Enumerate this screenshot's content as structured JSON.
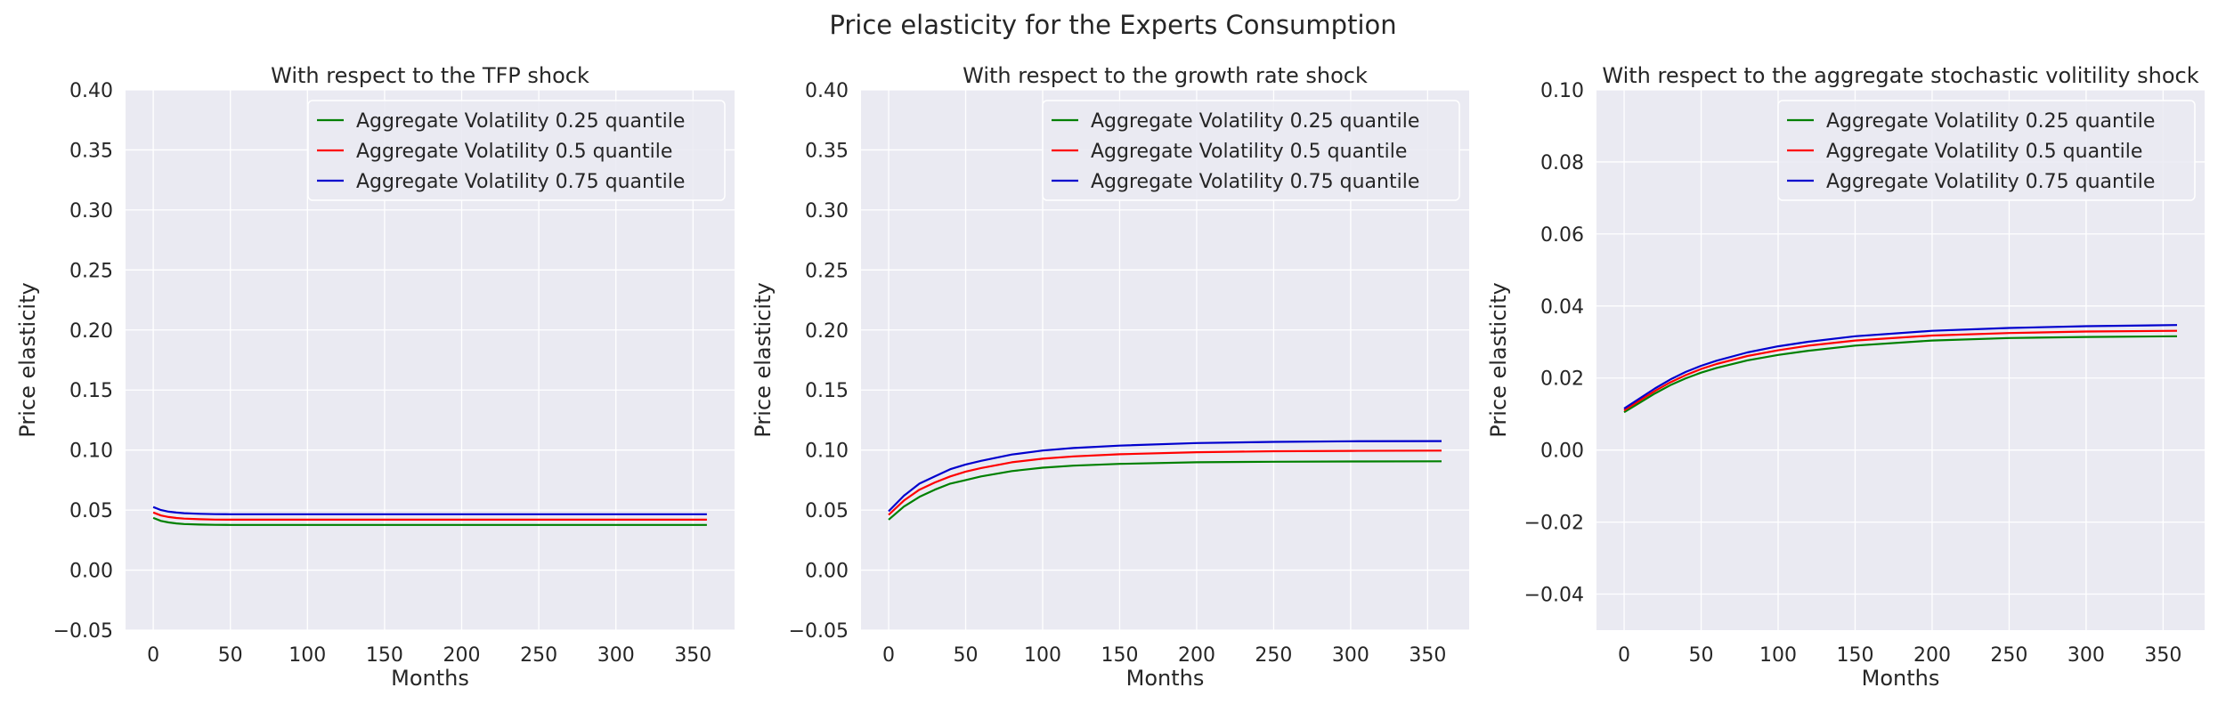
{
  "figure_title": "Price elasticity for the Experts Consumption",
  "chart_data": [
    {
      "type": "line",
      "title": "With respect to the TFP shock",
      "xlabel": "Months",
      "ylabel": "Price elasticity",
      "xlim": [
        -17.95,
        376.95
      ],
      "ylim": [
        -0.05,
        0.4
      ],
      "xticks": [
        0,
        50,
        100,
        150,
        200,
        250,
        300,
        350
      ],
      "yticks": [
        -0.05,
        0.0,
        0.05,
        0.1,
        0.15,
        0.2,
        0.25,
        0.3,
        0.35,
        0.4
      ],
      "ytick_decimals": 2,
      "grid": true,
      "legend": "top-right",
      "x": [
        0,
        5,
        10,
        15,
        20,
        30,
        40,
        50,
        60,
        80,
        100,
        150,
        200,
        250,
        300,
        359
      ],
      "series": [
        {
          "name": "Aggregate Volatility 0.25 quantile",
          "color": "#008000",
          "values": [
            0.0435,
            0.041,
            0.0397,
            0.0389,
            0.0384,
            0.0379,
            0.0377,
            0.0376,
            0.0376,
            0.0376,
            0.0376,
            0.0376,
            0.0376,
            0.0376,
            0.0376,
            0.0376
          ]
        },
        {
          "name": "Aggregate Volatility 0.5 quantile",
          "color": "#ff0000",
          "values": [
            0.048,
            0.0455,
            0.0442,
            0.0434,
            0.0429,
            0.0424,
            0.0421,
            0.042,
            0.042,
            0.042,
            0.042,
            0.042,
            0.042,
            0.042,
            0.042,
            0.042
          ]
        },
        {
          "name": "Aggregate Volatility 0.75 quantile",
          "color": "#0000cd",
          "values": [
            0.0525,
            0.05,
            0.0487,
            0.0479,
            0.0474,
            0.0469,
            0.0466,
            0.0465,
            0.0465,
            0.0465,
            0.0465,
            0.0465,
            0.0465,
            0.0465,
            0.0465,
            0.0465
          ]
        }
      ]
    },
    {
      "type": "line",
      "title": "With respect to the growth rate shock",
      "xlabel": "Months",
      "ylabel": "Price elasticity",
      "xlim": [
        -17.95,
        376.95
      ],
      "ylim": [
        -0.05,
        0.4
      ],
      "xticks": [
        0,
        50,
        100,
        150,
        200,
        250,
        300,
        350
      ],
      "yticks": [
        -0.05,
        0.0,
        0.05,
        0.1,
        0.15,
        0.2,
        0.25,
        0.3,
        0.35,
        0.4
      ],
      "ytick_decimals": 2,
      "grid": true,
      "legend": "top-right",
      "x": [
        0,
        10,
        20,
        30,
        40,
        50,
        60,
        80,
        100,
        120,
        150,
        200,
        250,
        300,
        359
      ],
      "series": [
        {
          "name": "Aggregate Volatility 0.25 quantile",
          "color": "#008000",
          "values": [
            0.042,
            0.053,
            0.061,
            0.067,
            0.072,
            0.075,
            0.078,
            0.0825,
            0.0853,
            0.087,
            0.0885,
            0.0898,
            0.0903,
            0.0905,
            0.0906
          ]
        },
        {
          "name": "Aggregate Volatility 0.5 quantile",
          "color": "#ff0000",
          "values": [
            0.046,
            0.058,
            0.067,
            0.073,
            0.078,
            0.082,
            0.085,
            0.0898,
            0.0928,
            0.0947,
            0.0965,
            0.0982,
            0.099,
            0.0993,
            0.0995
          ]
        },
        {
          "name": "Aggregate Volatility 0.75 quantile",
          "color": "#0000cd",
          "values": [
            0.049,
            0.062,
            0.072,
            0.078,
            0.084,
            0.088,
            0.091,
            0.0963,
            0.0996,
            0.1017,
            0.1037,
            0.1058,
            0.1068,
            0.1073,
            0.1075
          ]
        }
      ]
    },
    {
      "type": "line",
      "title": "With respect to the aggregate stochastic volitility shock",
      "xlabel": "Months",
      "ylabel": "Price elasticity",
      "xlim": [
        -17.95,
        376.95
      ],
      "ylim": [
        -0.05,
        0.1
      ],
      "xticks": [
        0,
        50,
        100,
        150,
        200,
        250,
        300,
        350
      ],
      "yticks": [
        -0.04,
        -0.02,
        0.0,
        0.02,
        0.04,
        0.06,
        0.08,
        0.1
      ],
      "ytick_decimals": 2,
      "grid": true,
      "legend": "top-right",
      "x": [
        0,
        10,
        20,
        30,
        40,
        50,
        60,
        80,
        100,
        120,
        150,
        200,
        250,
        300,
        359
      ],
      "series": [
        {
          "name": "Aggregate Volatility 0.25 quantile",
          "color": "#008000",
          "values": [
            0.0105,
            0.0131,
            0.0157,
            0.018,
            0.0199,
            0.0215,
            0.0228,
            0.0249,
            0.0264,
            0.0276,
            0.029,
            0.0304,
            0.0311,
            0.0314,
            0.0316
          ]
        },
        {
          "name": "Aggregate Volatility 0.5 quantile",
          "color": "#ff0000",
          "values": [
            0.011,
            0.0137,
            0.0164,
            0.0188,
            0.0208,
            0.0225,
            0.0239,
            0.0261,
            0.0277,
            0.029,
            0.0304,
            0.0318,
            0.0325,
            0.0329,
            0.0331
          ]
        },
        {
          "name": "Aggregate Volatility 0.75 quantile",
          "color": "#0000cd",
          "values": [
            0.0115,
            0.0143,
            0.0171,
            0.0196,
            0.0217,
            0.0234,
            0.0248,
            0.0271,
            0.0288,
            0.0301,
            0.0316,
            0.0331,
            0.0339,
            0.0344,
            0.0347
          ]
        }
      ]
    }
  ]
}
